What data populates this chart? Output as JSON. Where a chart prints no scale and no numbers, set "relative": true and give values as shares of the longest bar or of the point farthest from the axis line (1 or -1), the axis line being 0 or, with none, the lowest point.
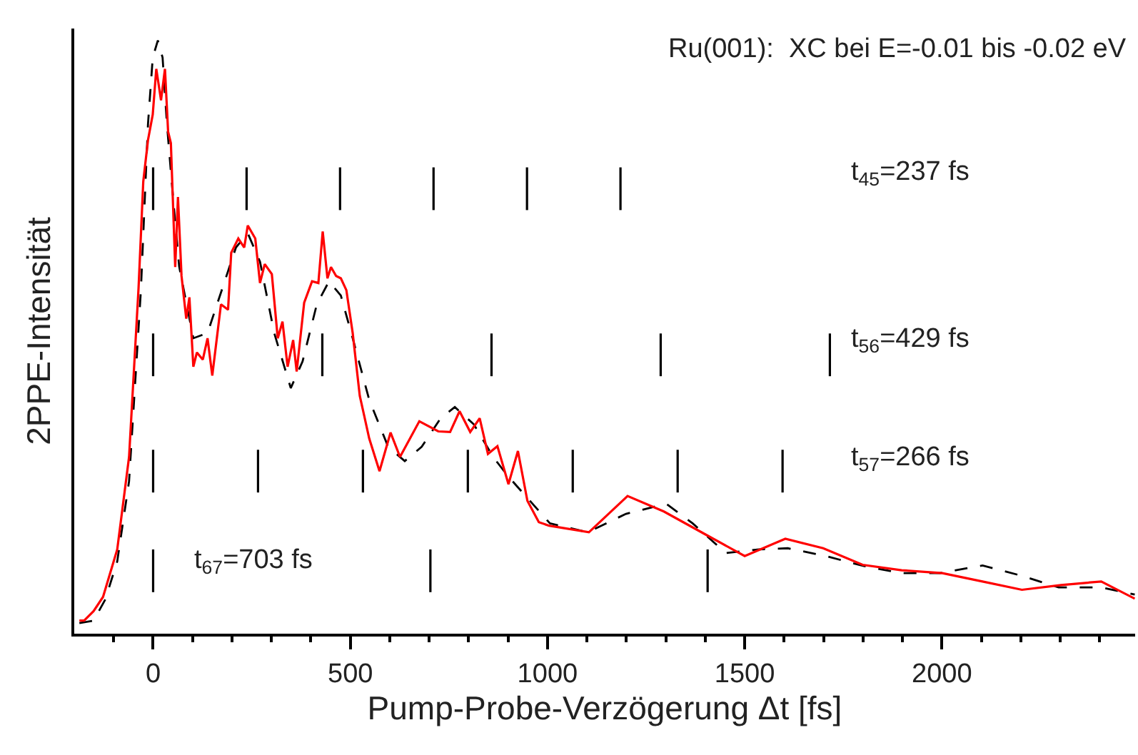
{
  "chart_data": {
    "type": "line",
    "relative": true,
    "xlabel": "Pump-Probe-Verzögerung Δt [fs]",
    "ylabel": "2PPE-Intensität",
    "annotations": [
      "Ru(001):  XC bei E=-0.01 bis -0.02 eV",
      "t$_{45}$=237 fs",
      "t$_{56}$=429 fs",
      "t$_{57}$=266 fs",
      "t$_{67}$=703 fs"
    ],
    "xlim": [
      -200,
      2490
    ],
    "xticks": [
      {
        "value": -100,
        "label": null
      },
      0,
      {
        "value": 100,
        "label": null
      },
      {
        "value": 200,
        "label": null
      },
      {
        "value": 300,
        "label": null
      },
      {
        "value": 400,
        "label": null
      },
      500,
      {
        "value": 600,
        "label": null
      },
      {
        "value": 700,
        "label": null
      },
      {
        "value": 800,
        "label": null
      },
      {
        "value": 900,
        "label": null
      },
      1000,
      {
        "value": 1100,
        "label": null
      },
      {
        "value": 1200,
        "label": null
      },
      {
        "value": 1300,
        "label": null
      },
      {
        "value": 1400,
        "label": null
      },
      1500,
      {
        "value": 1600,
        "label": null
      },
      {
        "value": 1700,
        "label": null
      },
      {
        "value": 1800,
        "label": null
      },
      {
        "value": 1900,
        "label": null
      },
      2000,
      {
        "value": 2100,
        "label": null
      },
      {
        "value": 2200,
        "label": null
      },
      {
        "value": 2300,
        "label": null
      },
      {
        "value": 2400,
        "label": null
      }
    ],
    "tick_labels": "x",
    "series": [
      {
        "color": "#000000",
        "line_style": "dashed",
        "x": [
          -187,
          -151,
          -121,
          -91,
          -61,
          -31,
          -13,
          -1,
          12,
          24,
          35,
          48,
          66,
          102,
          138,
          186,
          210,
          240,
          271,
          307,
          349,
          379,
          415,
          446,
          476,
          506,
          548,
          596,
          638,
          681,
          729,
          765,
          813,
          862,
          898,
          946,
          1006,
          1102,
          1199,
          1301,
          1368,
          1452,
          1536,
          1609,
          1705,
          1802,
          1898,
          1995,
          2103,
          2200,
          2296,
          2404,
          2489
        ],
        "values": [
          0.018,
          0.022,
          0.058,
          0.122,
          0.257,
          0.579,
          0.859,
          0.971,
          1.0,
          0.971,
          0.859,
          0.755,
          0.619,
          0.498,
          0.507,
          0.603,
          0.651,
          0.675,
          0.627,
          0.507,
          0.414,
          0.459,
          0.555,
          0.594,
          0.57,
          0.498,
          0.394,
          0.315,
          0.291,
          0.315,
          0.363,
          0.382,
          0.353,
          0.298,
          0.267,
          0.231,
          0.186,
          0.171,
          0.202,
          0.219,
          0.186,
          0.136,
          0.142,
          0.144,
          0.131,
          0.114,
          0.102,
          0.102,
          0.115,
          0.098,
          0.078,
          0.078,
          0.066
        ]
      },
      {
        "color": "#ff0000",
        "line_style": "solid",
        "x": [
          -187,
          -175,
          -151,
          -127,
          -91,
          -61,
          -37,
          -25,
          -13,
          -1,
          8,
          20,
          30,
          38,
          45,
          56,
          63,
          72,
          84,
          92,
          102,
          111,
          126,
          138,
          150,
          172,
          190,
          198,
          216,
          231,
          240,
          259,
          271,
          283,
          301,
          316,
          328,
          341,
          355,
          364,
          383,
          403,
          419,
          430,
          442,
          451,
          464,
          476,
          490,
          506,
          524,
          548,
          574,
          602,
          626,
          675,
          723,
          753,
          777,
          804,
          828,
          849,
          873,
          901,
          925,
          949,
          978,
          1004,
          1105,
          1203,
          1295,
          1404,
          1500,
          1603,
          1699,
          1799,
          1898,
          2001,
          2103,
          2203,
          2302,
          2404,
          2489
        ],
        "values": [
          0.022,
          0.022,
          0.038,
          0.062,
          0.142,
          0.298,
          0.582,
          0.762,
          0.832,
          0.875,
          0.952,
          0.899,
          0.952,
          0.846,
          0.827,
          0.618,
          0.736,
          0.603,
          0.531,
          0.567,
          0.45,
          0.474,
          0.462,
          0.498,
          0.435,
          0.555,
          0.546,
          0.642,
          0.666,
          0.651,
          0.688,
          0.666,
          0.591,
          0.623,
          0.606,
          0.498,
          0.526,
          0.45,
          0.495,
          0.442,
          0.558,
          0.594,
          0.591,
          0.678,
          0.599,
          0.618,
          0.603,
          0.599,
          0.579,
          0.507,
          0.401,
          0.329,
          0.274,
          0.339,
          0.298,
          0.358,
          0.341,
          0.34,
          0.375,
          0.34,
          0.363,
          0.303,
          0.316,
          0.252,
          0.308,
          0.224,
          0.188,
          0.182,
          0.171,
          0.232,
          0.206,
          0.166,
          0.131,
          0.16,
          0.144,
          0.116,
          0.107,
          0.102,
          0.088,
          0.074,
          0.082,
          0.088,
          0.059
        ]
      },
      {
        "color": "#000000",
        "line_style": "solid",
        "x": [
          0,
          0,
          null,
          237,
          237,
          null,
          474,
          474,
          null,
          711,
          711,
          null,
          948,
          948,
          null,
          1185,
          1185
        ],
        "values": [
          0.714,
          0.786,
          null,
          0.714,
          0.786,
          null,
          0.714,
          0.786,
          null,
          0.714,
          0.786,
          null,
          0.714,
          0.786,
          null,
          0.714,
          0.786
        ]
      },
      {
        "color": "#000000",
        "line_style": "solid",
        "x": [
          0,
          0,
          null,
          429,
          429,
          null,
          858,
          858,
          null,
          1287,
          1287,
          null,
          1716,
          1716
        ],
        "values": [
          0.434,
          0.506,
          null,
          0.434,
          0.506,
          null,
          0.434,
          0.506,
          null,
          0.434,
          0.506,
          null,
          0.434,
          0.506
        ]
      },
      {
        "color": "#000000",
        "line_style": "solid",
        "x": [
          0,
          0,
          null,
          266,
          266,
          null,
          532,
          532,
          null,
          798,
          798,
          null,
          1064,
          1064,
          null,
          1330,
          1330,
          null,
          1596,
          1596
        ],
        "values": [
          0.238,
          0.31,
          null,
          0.238,
          0.31,
          null,
          0.238,
          0.31,
          null,
          0.238,
          0.31,
          null,
          0.238,
          0.31,
          null,
          0.238,
          0.31,
          null,
          0.238,
          0.31
        ]
      },
      {
        "color": "#000000",
        "line_style": "solid",
        "x": [
          0,
          0,
          null,
          703,
          703,
          null,
          1406,
          1406
        ],
        "values": [
          0.07,
          0.142,
          null,
          0.07,
          0.142,
          null,
          0.07,
          0.142
        ]
      }
    ]
  }
}
